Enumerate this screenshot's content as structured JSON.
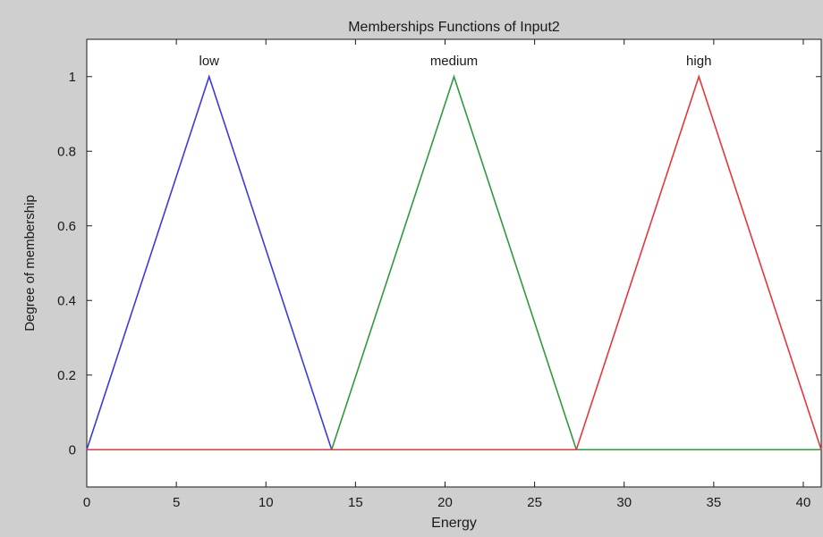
{
  "chart_data": {
    "type": "line",
    "title": "Memberships Functions of Input2",
    "xlabel": "Energy",
    "ylabel": "Degree of membership",
    "xlim": [
      0,
      41
    ],
    "ylim": [
      -0.1,
      1.1
    ],
    "xticks": [
      "0",
      "5",
      "10",
      "15",
      "20",
      "25",
      "30",
      "35",
      "40"
    ],
    "xtick_values": [
      0,
      5,
      10,
      15,
      20,
      25,
      30,
      35,
      40
    ],
    "yticks": [
      "0",
      "0.2",
      "0.4",
      "0.6",
      "0.8",
      "1"
    ],
    "ytick_values": [
      0,
      0.2,
      0.4,
      0.6,
      0.8,
      1
    ],
    "grid": false,
    "series": [
      {
        "name": "low",
        "color": "#3a3adf",
        "x": [
          0,
          6.83,
          13.67
        ],
        "y": [
          0,
          1,
          0
        ]
      },
      {
        "name": "medium",
        "color": "#2e9a3e",
        "x": [
          13.67,
          20.5,
          27.33,
          41
        ],
        "y": [
          0,
          1,
          0,
          0
        ]
      },
      {
        "name": "high",
        "color": "#e8353a",
        "x": [
          0,
          27.33,
          34.17,
          41
        ],
        "y": [
          0,
          0,
          1,
          0
        ]
      }
    ]
  }
}
